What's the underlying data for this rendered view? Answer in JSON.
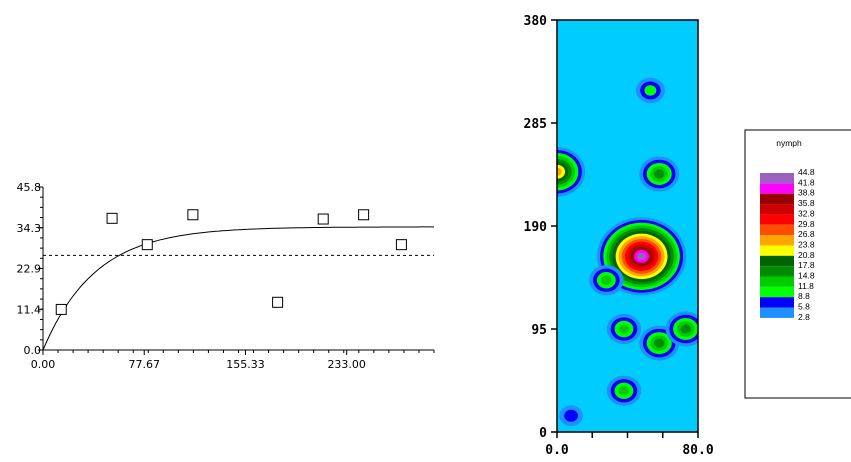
{
  "chart_data": [
    {
      "type": "scatter",
      "title": "",
      "xlabel": "",
      "ylabel": "",
      "xlim": [
        0,
        300
      ],
      "ylim": [
        0,
        45.8
      ],
      "x_ticks": [
        "0.00",
        "77.67",
        "155.33",
        "233.00"
      ],
      "y_ticks": [
        "0.0",
        "11.4",
        "22.9",
        "34.3",
        "45.8"
      ],
      "points": [
        {
          "x": 14,
          "y": 11.4
        },
        {
          "x": 53,
          "y": 37.0
        },
        {
          "x": 80,
          "y": 29.6
        },
        {
          "x": 115,
          "y": 38.0
        },
        {
          "x": 180,
          "y": 13.4
        },
        {
          "x": 215,
          "y": 36.8
        },
        {
          "x": 246,
          "y": 38.0
        },
        {
          "x": 275,
          "y": 29.6
        }
      ],
      "fitted_model": {
        "type": "exponential",
        "nugget": 0,
        "sill": 34.6,
        "range": 120
      },
      "reference_line": {
        "y": 26.6,
        "style": "dashed"
      }
    },
    {
      "type": "heatmap",
      "title": "",
      "xlim": [
        0,
        80.0
      ],
      "ylim": [
        0,
        380
      ],
      "x_ticks": [
        "0.0",
        "80.0"
      ],
      "y_ticks": [
        "0",
        "95",
        "190",
        "285",
        "380"
      ],
      "legend": {
        "title": "nymph",
        "top_label": "44.8",
        "classes": [
          {
            "value": "41.8",
            "color": "#9b5fc0"
          },
          {
            "value": "38.8",
            "color": "#ff00ff"
          },
          {
            "value": "35.8",
            "color": "#990000"
          },
          {
            "value": "32.8",
            "color": "#cc0000"
          },
          {
            "value": "29.8",
            "color": "#ff0000"
          },
          {
            "value": "26.8",
            "color": "#ff4d00"
          },
          {
            "value": "23.8",
            "color": "#ffa500"
          },
          {
            "value": "20.8",
            "color": "#ffff00"
          },
          {
            "value": "17.8",
            "color": "#006400"
          },
          {
            "value": "14.8",
            "color": "#008c00"
          },
          {
            "value": "11.8",
            "color": "#00cd00"
          },
          {
            "value": "8.8",
            "color": "#00ff00"
          },
          {
            "value": "5.8",
            "color": "#0000ff"
          },
          {
            "value": "2.8",
            "color": "#1e90ff"
          }
        ]
      },
      "background_color": "#00ccff",
      "hotspots": [
        {
          "x": 48,
          "y": 162,
          "peak": 41.8
        },
        {
          "x": 0,
          "y": 240,
          "peak": 23.8
        },
        {
          "x": 58,
          "y": 238,
          "peak": 14.8
        },
        {
          "x": 53,
          "y": 315,
          "peak": 8.8
        },
        {
          "x": 38,
          "y": 95,
          "peak": 11.8
        },
        {
          "x": 58,
          "y": 82,
          "peak": 14.8
        },
        {
          "x": 73,
          "y": 95,
          "peak": 14.8
        },
        {
          "x": 38,
          "y": 38,
          "peak": 11.8
        },
        {
          "x": 8,
          "y": 15,
          "peak": 5.8
        },
        {
          "x": 28,
          "y": 140,
          "peak": 11.8
        }
      ]
    }
  ]
}
